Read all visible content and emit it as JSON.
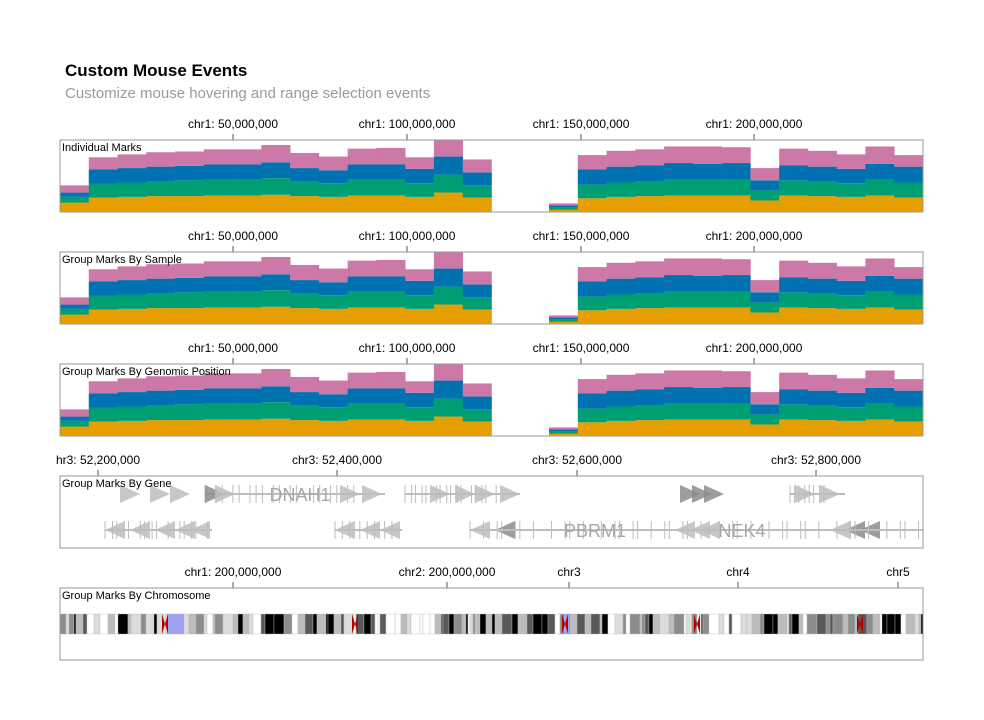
{
  "header": {
    "title": "Custom Mouse Events",
    "subtitle": "Customize mouse hovering and range selection events"
  },
  "colors": {
    "categories": [
      "#e69f00",
      "#009e73",
      "#0072b2",
      "#cc79a7"
    ],
    "frame": "#999999",
    "gene": "#bdbdbd",
    "highlight": "#a0a0f0",
    "centromere": "#b40000"
  },
  "chart_data": [
    {
      "type": "area",
      "subtype": "stacked-bar",
      "name": "Individual Marks",
      "x_ticks": [
        "chr1: 50,000,000",
        "chr1: 100,000,000",
        "chr1: 150,000,000",
        "chr1: 200,000,000"
      ],
      "bins": 30,
      "values": [
        [
          0.13,
          0.08,
          0.06,
          0.1
        ],
        [
          0.2,
          0.19,
          0.2,
          0.17
        ],
        [
          0.21,
          0.2,
          0.2,
          0.19
        ],
        [
          0.22,
          0.2,
          0.21,
          0.2
        ],
        [
          0.22,
          0.22,
          0.2,
          0.2
        ],
        [
          0.23,
          0.22,
          0.21,
          0.21
        ],
        [
          0.23,
          0.22,
          0.21,
          0.21
        ],
        [
          0.24,
          0.23,
          0.22,
          0.24
        ],
        [
          0.22,
          0.2,
          0.19,
          0.21
        ],
        [
          0.21,
          0.19,
          0.18,
          0.19
        ],
        [
          0.23,
          0.22,
          0.21,
          0.22
        ],
        [
          0.23,
          0.22,
          0.21,
          0.23
        ],
        [
          0.21,
          0.19,
          0.2,
          0.16
        ],
        [
          0.27,
          0.25,
          0.25,
          0.23
        ],
        [
          0.2,
          0.17,
          0.18,
          0.18
        ],
        [
          0.0,
          0.0,
          0.0,
          0.0
        ],
        [
          0.0,
          0.0,
          0.0,
          0.0
        ],
        [
          0.03,
          0.03,
          0.03,
          0.03
        ],
        [
          0.19,
          0.19,
          0.21,
          0.2
        ],
        [
          0.21,
          0.2,
          0.22,
          0.22
        ],
        [
          0.22,
          0.21,
          0.22,
          0.22
        ],
        [
          0.23,
          0.22,
          0.23,
          0.23
        ],
        [
          0.23,
          0.22,
          0.22,
          0.24
        ],
        [
          0.23,
          0.22,
          0.23,
          0.22
        ],
        [
          0.16,
          0.14,
          0.14,
          0.17
        ],
        [
          0.23,
          0.21,
          0.21,
          0.23
        ],
        [
          0.22,
          0.21,
          0.2,
          0.22
        ],
        [
          0.21,
          0.19,
          0.2,
          0.2
        ],
        [
          0.23,
          0.22,
          0.22,
          0.24
        ],
        [
          0.2,
          0.21,
          0.22,
          0.16
        ]
      ]
    },
    {
      "type": "area",
      "subtype": "stacked-bar",
      "name": "Group Marks By Sample",
      "x_ticks": [
        "chr1: 50,000,000",
        "chr1: 100,000,000",
        "chr1: 150,000,000",
        "chr1: 200,000,000"
      ],
      "same_values_as": "Individual Marks"
    },
    {
      "type": "area",
      "subtype": "stacked-bar",
      "name": "Group Marks By Genomic Position",
      "x_ticks": [
        "chr1: 50,000,000",
        "chr1: 100,000,000",
        "chr1: 150,000,000",
        "chr1: 200,000,000"
      ],
      "same_values_as": "Individual Marks"
    },
    {
      "type": "other",
      "subtype": "gene-annotation",
      "name": "Group Marks By Gene",
      "x_ticks": [
        "hr3: 52,200,000",
        "chr3: 52,400,000",
        "chr3: 52,600,000",
        "chr3: 52,800,000"
      ],
      "genes": [
        {
          "label": "DNAH1",
          "strand": "+",
          "row": 0
        },
        {
          "label": "PBRM1",
          "strand": "-",
          "row": 1
        },
        {
          "label": "NEK4",
          "strand": "-",
          "row": 1
        }
      ]
    },
    {
      "type": "other",
      "subtype": "ideogram",
      "name": "Group Marks By Chromosome",
      "x_ticks": [
        "chr1: 200,000,000",
        "chr2: 200,000,000",
        "chr3",
        "chr4",
        "chr5"
      ]
    }
  ]
}
